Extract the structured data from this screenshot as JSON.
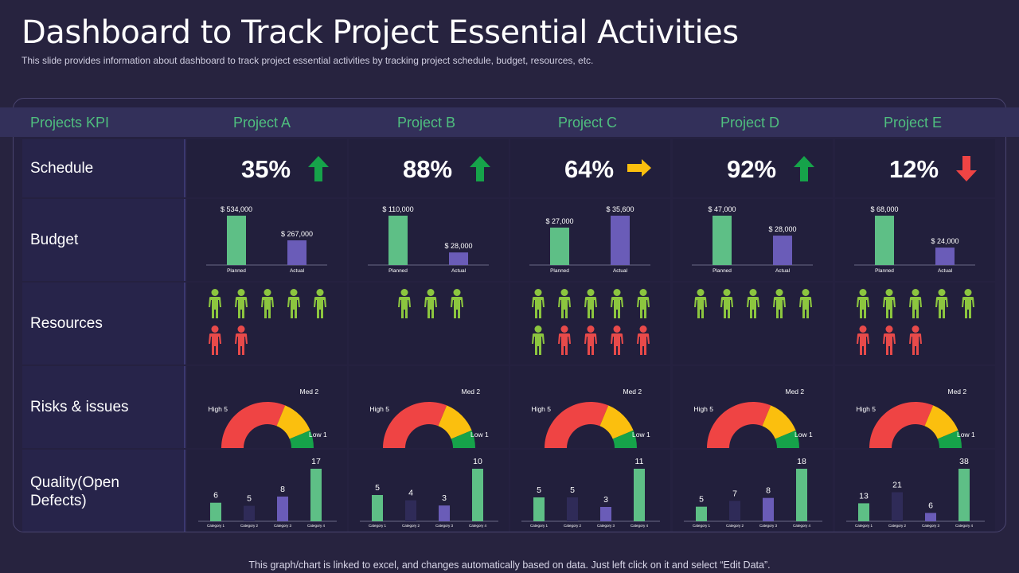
{
  "title": "Dashboard to Track Project Essential Activities",
  "subtitle": "This slide provides  information  about dashboard  to track project essential activities by tracking project schedule, budget, resources, etc.",
  "footer": "This graph/chart is linked to excel, and changes automatically based on data. Just left click on it and select “Edit Data”.",
  "header": {
    "kpi_label": "Projects KPI",
    "projects": [
      "Project A",
      "Project B",
      "Project C",
      "Project D",
      "Project E"
    ]
  },
  "rows": {
    "schedule": "Schedule",
    "budget": "Budget",
    "resources": "Resources",
    "risks": "Risks & issues",
    "quality": "Quality(Open Defects)"
  },
  "colors": {
    "green": "#5ebf86",
    "purple": "#6a5cb8",
    "person_green": "#8cc63f",
    "person_red": "#e84a4a",
    "gauge_red": "#ef4444",
    "gauge_yellow": "#fbbf0e",
    "gauge_green": "#16a34a",
    "arrow_up": "#16a34a",
    "arrow_right": "#fbbf0e",
    "arrow_down": "#ef4444"
  },
  "schedule": [
    {
      "value": "35%",
      "trend": "up"
    },
    {
      "value": "88%",
      "trend": "up"
    },
    {
      "value": "64%",
      "trend": "right"
    },
    {
      "value": "92%",
      "trend": "up"
    },
    {
      "value": "12%",
      "trend": "down"
    }
  ],
  "resources": [
    {
      "green": 5,
      "red": 2
    },
    {
      "green": 3,
      "red": 0
    },
    {
      "green": 6,
      "red": 4
    },
    {
      "green": 5,
      "red": 0
    },
    {
      "green": 5,
      "red": 3
    }
  ],
  "chart_data": [
    {
      "type": "bar",
      "title": "Budget - Project A",
      "categories": [
        "Planned",
        "Actual"
      ],
      "values": [
        534000,
        267000
      ],
      "labels": [
        "$ 534,000",
        "$ 267,000"
      ]
    },
    {
      "type": "bar",
      "title": "Budget - Project B",
      "categories": [
        "Planned",
        "Actual"
      ],
      "values": [
        110000,
        28000
      ],
      "labels": [
        "$ 110,000",
        "$ 28,000"
      ]
    },
    {
      "type": "bar",
      "title": "Budget - Project C",
      "categories": [
        "Planned",
        "Actual"
      ],
      "values": [
        27000,
        35600
      ],
      "labels": [
        "$ 27,000",
        "$ 35,600"
      ]
    },
    {
      "type": "bar",
      "title": "Budget - Project D",
      "categories": [
        "Planned",
        "Actual"
      ],
      "values": [
        47000,
        28000
      ],
      "labels": [
        "$ 47,000",
        "$ 28,000"
      ]
    },
    {
      "type": "bar",
      "title": "Budget - Project E",
      "categories": [
        "Planned",
        "Actual"
      ],
      "values": [
        68000,
        24000
      ],
      "labels": [
        "$ 68,000",
        "$ 24,000"
      ]
    },
    {
      "type": "pie",
      "title": "Risks & issues - Project A",
      "categories": [
        "High",
        "Med",
        "Low"
      ],
      "values": [
        5,
        2,
        1
      ],
      "labels": [
        "High 5",
        "Med 2",
        "Low 1"
      ]
    },
    {
      "type": "pie",
      "title": "Risks & issues - Project B",
      "categories": [
        "High",
        "Med",
        "Low"
      ],
      "values": [
        5,
        2,
        1
      ],
      "labels": [
        "High 5",
        "Med 2",
        "Low 1"
      ]
    },
    {
      "type": "pie",
      "title": "Risks & issues - Project C",
      "categories": [
        "High",
        "Med",
        "Low"
      ],
      "values": [
        5,
        2,
        1
      ],
      "labels": [
        "High 5",
        "Med 2",
        "Low 1"
      ]
    },
    {
      "type": "pie",
      "title": "Risks & issues - Project D",
      "categories": [
        "High",
        "Med",
        "Low"
      ],
      "values": [
        5,
        2,
        1
      ],
      "labels": [
        "High 5",
        "Med 2",
        "Low 1"
      ]
    },
    {
      "type": "pie",
      "title": "Risks & issues - Project E",
      "categories": [
        "High",
        "Med",
        "Low"
      ],
      "values": [
        5,
        2,
        1
      ],
      "labels": [
        "High 5",
        "Med 2",
        "Low 1"
      ]
    },
    {
      "type": "bar",
      "title": "Quality(Open Defects) - Project A",
      "categories": [
        "Category 1",
        "Category 2",
        "Category 3",
        "Category 4"
      ],
      "values": [
        6,
        5,
        8,
        17
      ]
    },
    {
      "type": "bar",
      "title": "Quality(Open Defects) - Project B",
      "categories": [
        "Category 1",
        "Category 2",
        "Category 3",
        "Category 4"
      ],
      "values": [
        5,
        4,
        3,
        10
      ]
    },
    {
      "type": "bar",
      "title": "Quality(Open Defects) - Project C",
      "categories": [
        "Category 1",
        "Category 2",
        "Category 3",
        "Category 4"
      ],
      "values": [
        5,
        5,
        3,
        11
      ]
    },
    {
      "type": "bar",
      "title": "Quality(Open Defects) - Project D",
      "categories": [
        "Category 1",
        "Category 2",
        "Category 3",
        "Category 4"
      ],
      "values": [
        5,
        7,
        8,
        18
      ]
    },
    {
      "type": "bar",
      "title": "Quality(Open Defects) - Project E",
      "categories": [
        "Category 1",
        "Category 2",
        "Category 3",
        "Category 4"
      ],
      "values": [
        13,
        21,
        6,
        38
      ]
    }
  ]
}
